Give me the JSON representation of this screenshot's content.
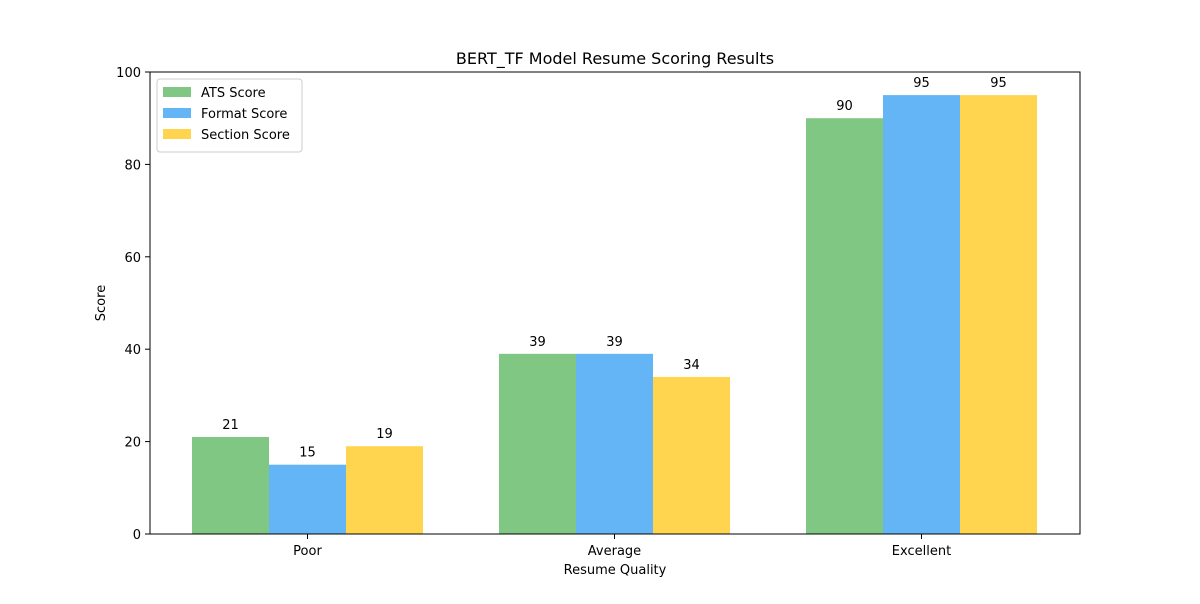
{
  "chart_data": {
    "type": "bar",
    "title": "BERT_TF Model Resume Scoring Results",
    "xlabel": "Resume Quality",
    "ylabel": "Score",
    "categories": [
      "Poor",
      "Average",
      "Excellent"
    ],
    "series": [
      {
        "name": "ATS Score",
        "values": [
          21,
          39,
          90
        ],
        "color": "#81C784"
      },
      {
        "name": "Format Score",
        "values": [
          15,
          39,
          95
        ],
        "color": "#64B5F6"
      },
      {
        "name": "Section Score",
        "values": [
          19,
          34,
          95
        ],
        "color": "#FFD54F"
      }
    ],
    "ylim": [
      0,
      100
    ],
    "yticks": [
      0,
      20,
      40,
      60,
      80,
      100
    ],
    "grid": false,
    "legend_position": "top-left",
    "data_labels": true
  }
}
